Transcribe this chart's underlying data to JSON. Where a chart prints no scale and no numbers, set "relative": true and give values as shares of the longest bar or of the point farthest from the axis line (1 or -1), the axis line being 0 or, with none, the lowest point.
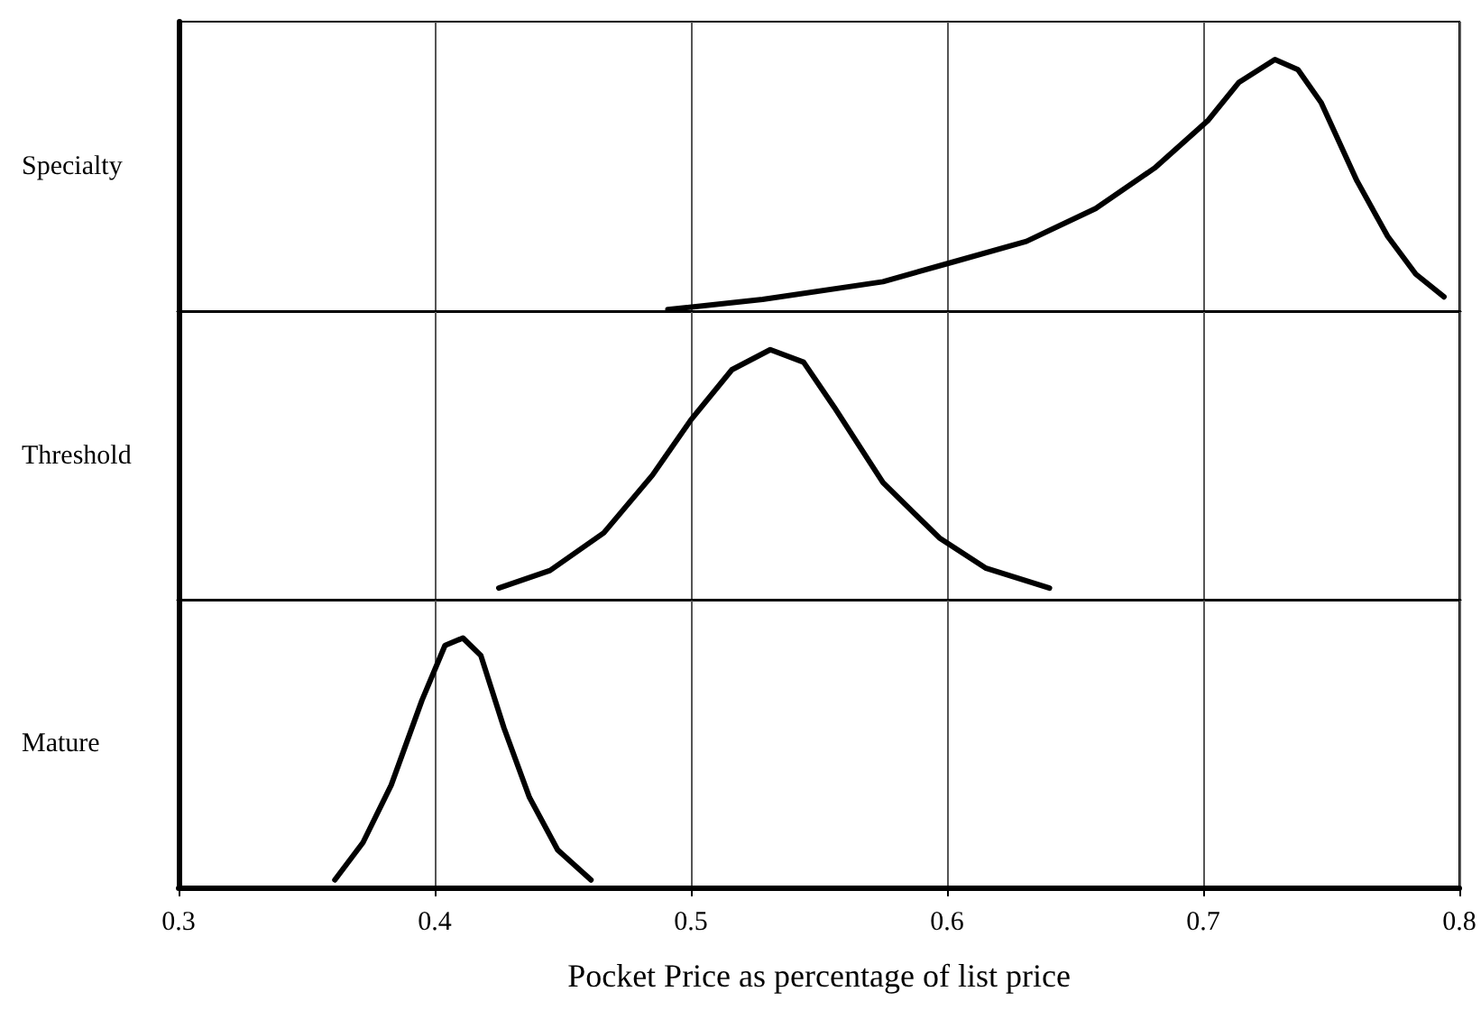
{
  "chart_data": [
    {
      "type": "line",
      "ylabel": "Specialty",
      "relative": true,
      "xlim": [
        0.3,
        0.8
      ],
      "xticks": [
        0.3,
        0.4,
        0.5,
        0.6,
        0.7,
        0.8
      ],
      "grid": "x",
      "tick_labels": false,
      "marker": "none",
      "line_style": "solid",
      "series": [
        {
          "color": "#000000",
          "x": [
            0.491,
            0.528,
            0.575,
            0.603,
            0.631,
            0.658,
            0.681,
            0.702,
            0.714,
            0.728,
            0.737,
            0.746,
            0.76,
            0.772,
            0.783,
            0.794
          ],
          "values": [
            0.01,
            0.05,
            0.12,
            0.2,
            0.28,
            0.41,
            0.57,
            0.76,
            0.91,
            1.0,
            0.96,
            0.83,
            0.52,
            0.3,
            0.15,
            0.06
          ]
        }
      ]
    },
    {
      "type": "line",
      "ylabel": "Threshold",
      "relative": true,
      "xlim": [
        0.3,
        0.8
      ],
      "xticks": [
        0.3,
        0.4,
        0.5,
        0.6,
        0.7,
        0.8
      ],
      "grid": "x",
      "tick_labels": false,
      "marker": "none",
      "line_style": "solid",
      "series": [
        {
          "color": "#000000",
          "x": [
            0.425,
            0.445,
            0.466,
            0.485,
            0.5,
            0.516,
            0.531,
            0.544,
            0.556,
            0.575,
            0.597,
            0.615,
            0.64
          ],
          "values": [
            0.05,
            0.12,
            0.27,
            0.5,
            0.72,
            0.92,
            1.0,
            0.95,
            0.77,
            0.47,
            0.25,
            0.13,
            0.05
          ]
        }
      ]
    },
    {
      "type": "line",
      "ylabel": "Mature",
      "xlabel": "Pocket Price as percentage of list price",
      "relative": true,
      "xlim": [
        0.3,
        0.8
      ],
      "xticks": [
        0.3,
        0.4,
        0.5,
        0.6,
        0.7,
        0.8
      ],
      "grid": "x",
      "tick_labels": "x",
      "marker": "none",
      "line_style": "solid",
      "series": [
        {
          "color": "#000000",
          "x": [
            0.361,
            0.372,
            0.383,
            0.395,
            0.404,
            0.411,
            0.418,
            0.427,
            0.437,
            0.448,
            0.461
          ],
          "values": [
            0.03,
            0.18,
            0.41,
            0.75,
            0.97,
            1.0,
            0.93,
            0.64,
            0.36,
            0.15,
            0.03
          ]
        }
      ]
    }
  ]
}
